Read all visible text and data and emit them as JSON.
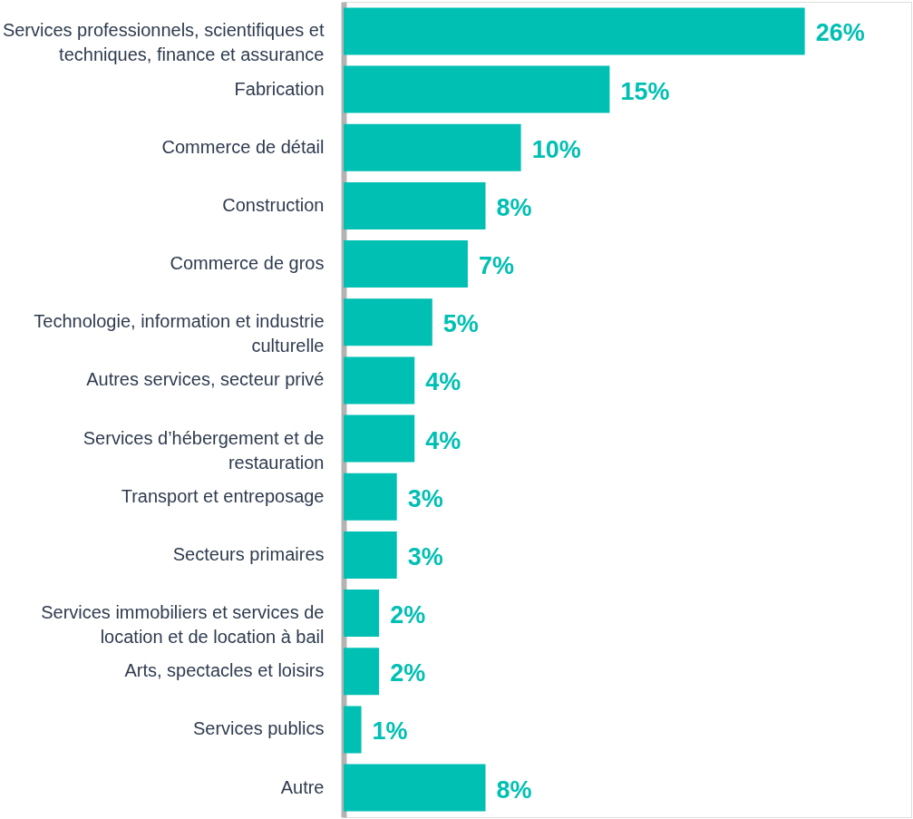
{
  "chart_data": {
    "type": "bar",
    "orientation": "horizontal",
    "categories": [
      "Services professionnels, scientifiques et\ntechniques, finance et assurance",
      "Fabrication",
      "Commerce de détail",
      "Construction",
      "Commerce de gros",
      "Technologie, information et industrie\nculturelle",
      "Autres services, secteur privé",
      "Services d’hébergement et de\nrestauration",
      "Transport et entreposage",
      "Secteurs primaires",
      "Services immobiliers et services de\nlocation et de location à bail",
      "Arts, spectacles et loisirs",
      "Services publics",
      "Autre"
    ],
    "values": [
      26,
      15,
      10,
      8,
      7,
      5,
      4,
      4,
      3,
      3,
      2,
      2,
      1,
      8
    ],
    "color": "#00bfb3",
    "xlim": [
      0,
      32
    ],
    "tick_labels": "y",
    "grid": false,
    "value_labels": [
      "26%",
      "15%",
      "10%",
      "8%",
      "7%",
      "5%",
      "4%",
      "4%",
      "3%",
      "3%",
      "2%",
      "2%",
      "1%",
      "8%"
    ]
  }
}
